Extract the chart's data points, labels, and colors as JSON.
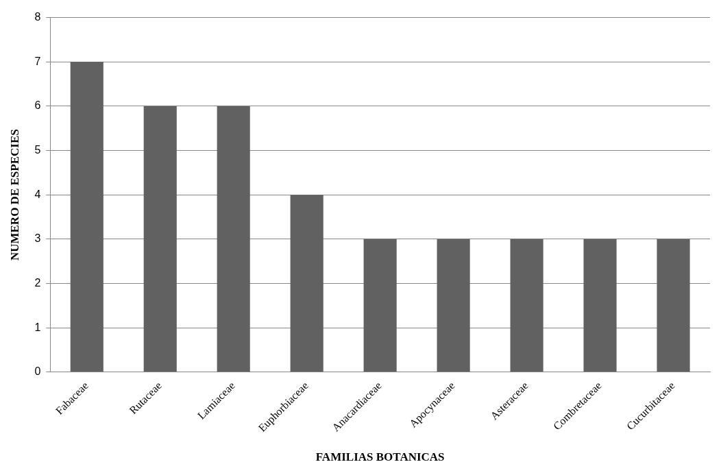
{
  "chart_data": {
    "type": "bar",
    "xlabel": "FAMILIAS BOTANICAS",
    "ylabel": "NUMERO DE ESPECIES",
    "categories": [
      "Fabaceae",
      "Rutaceae",
      "Lamiaceae",
      "Euphorbiaceae",
      "Anacardiaceae",
      "Apocynaceae",
      "Asteraceae",
      "Combretaceae",
      "Cucurbitaceae"
    ],
    "values": [
      7,
      6,
      6,
      4,
      3,
      3,
      3,
      3,
      3
    ],
    "color": "#616161",
    "ylim": [
      0,
      8
    ],
    "yticks": [
      0,
      1,
      2,
      3,
      4,
      5,
      6,
      7,
      8
    ],
    "grid": "y",
    "legend": false
  }
}
